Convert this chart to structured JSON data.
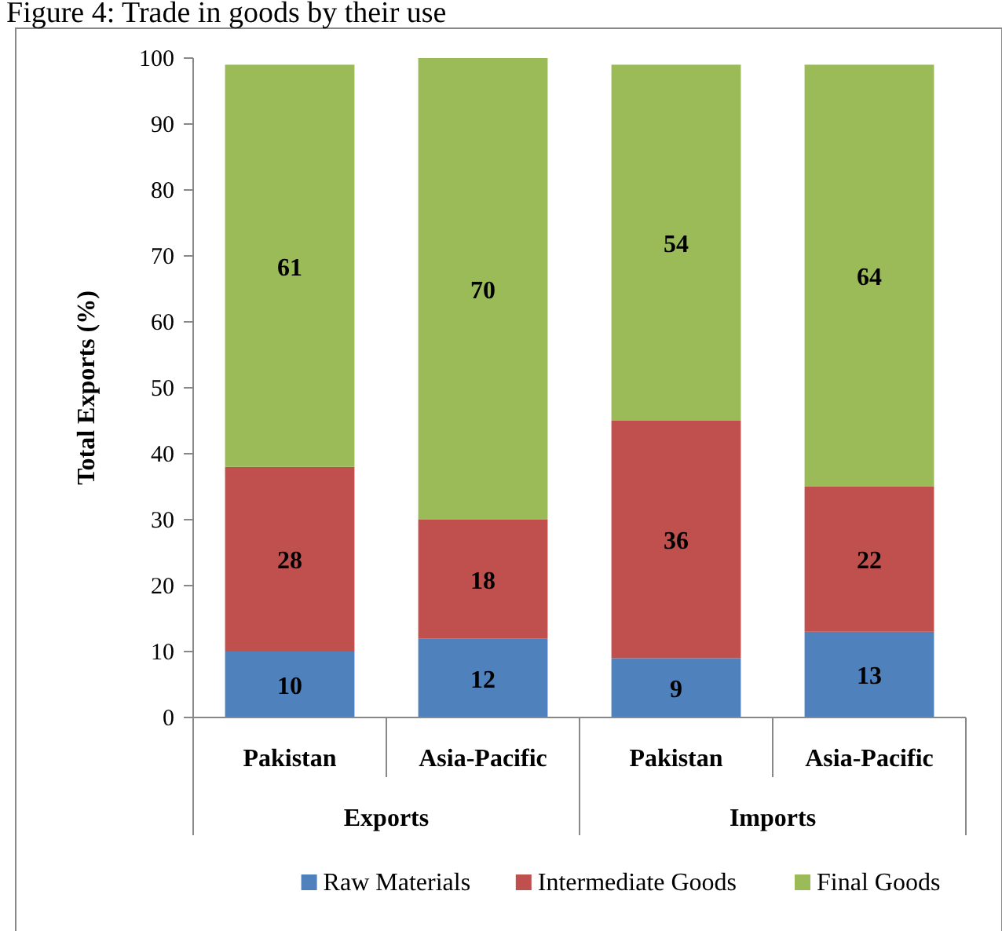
{
  "chart_data": {
    "type": "bar",
    "stacked": true,
    "title": "Figure 4: Trade in goods by their use",
    "ylabel": "Total Exports (%)",
    "categories": [
      "Pakistan",
      "Asia-Pacific",
      "Pakistan",
      "Asia-Pacific"
    ],
    "series": [
      {
        "name": "Raw Materials",
        "color": "#4f81bd",
        "values": [
          10,
          12,
          9,
          13
        ]
      },
      {
        "name": "Intermediate Goods",
        "color": "#c0504d",
        "values": [
          28,
          18,
          36,
          22
        ]
      },
      {
        "name": "Final Goods",
        "color": "#9bbb59",
        "values": [
          61,
          70,
          54,
          64
        ]
      }
    ],
    "annotations": [
      "Exports",
      "Imports"
    ],
    "ylim": [
      0,
      100
    ],
    "yticks": [
      0,
      10,
      20,
      30,
      40,
      50,
      60,
      70,
      80,
      90,
      100
    ],
    "data_labels": true,
    "legend": "bottom"
  }
}
